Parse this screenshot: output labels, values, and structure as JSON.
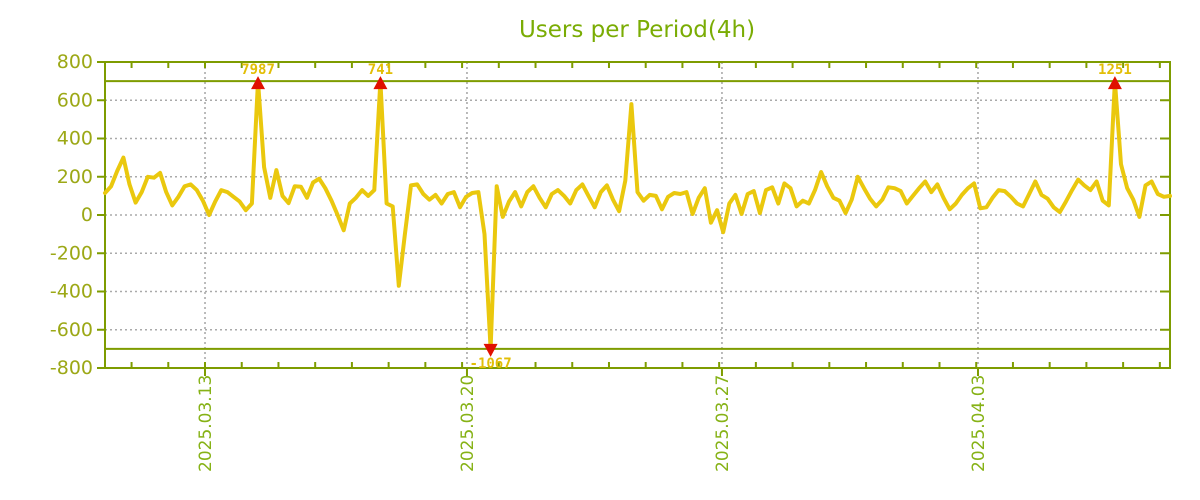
{
  "chart_data": {
    "type": "line",
    "title": "Users per Period(4h)",
    "xlabel": "",
    "ylabel": "",
    "period": "4h",
    "grid": true,
    "legend_position": "none",
    "y_axis": {
      "min": -800,
      "max": 800,
      "tick_step": 200,
      "tick_labels": [
        "800",
        "600",
        "400",
        "200",
        "0",
        "-200",
        "-400",
        "-600",
        "-800"
      ]
    },
    "x_axis": {
      "tick_labels": [
        "2025.03.13",
        "2025.03.20",
        "2025.03.27",
        "2025.04.03"
      ],
      "tick_indices": [
        16.34,
        59.14,
        100.8,
        142.63
      ],
      "minor_tick_step_points": 6,
      "minor_tick_first_index": 4.34
    },
    "thresholds": {
      "upper": 700,
      "lower": -700
    },
    "series": [
      {
        "name": "Users",
        "values": [
          115,
          150,
          230,
          300,
          160,
          65,
          120,
          200,
          195,
          220,
          120,
          50,
          95,
          150,
          160,
          130,
          75,
          0,
          70,
          130,
          120,
          95,
          70,
          25,
          60,
          7987,
          250,
          90,
          235,
          100,
          62,
          150,
          148,
          90,
          170,
          190,
          140,
          75,
          0,
          -80,
          60,
          90,
          130,
          100,
          130,
          741,
          60,
          45,
          -370,
          -100,
          155,
          160,
          110,
          80,
          105,
          60,
          110,
          120,
          40,
          95,
          115,
          120,
          -100,
          -1067,
          150,
          -10,
          70,
          120,
          45,
          120,
          150,
          90,
          40,
          110,
          130,
          100,
          60,
          130,
          160,
          100,
          40,
          120,
          155,
          80,
          20,
          180,
          580,
          120,
          75,
          105,
          100,
          30,
          95,
          115,
          110,
          120,
          5,
          90,
          140,
          -40,
          25,
          -90,
          60,
          105,
          5,
          110,
          125,
          10,
          130,
          145,
          60,
          165,
          140,
          45,
          75,
          60,
          130,
          225,
          150,
          90,
          75,
          10,
          80,
          200,
          140,
          85,
          45,
          80,
          145,
          140,
          125,
          60,
          100,
          140,
          175,
          120,
          160,
          90,
          30,
          60,
          105,
          140,
          165,
          35,
          40,
          90,
          130,
          125,
          95,
          60,
          45,
          110,
          175,
          105,
          85,
          40,
          15,
          70,
          130,
          185,
          155,
          130,
          175,
          75,
          50,
          1251,
          265,
          140,
          80,
          -10,
          155,
          175,
          110,
          95,
          100
        ]
      }
    ],
    "annotations": [
      {
        "label": "7987",
        "value": 7987,
        "index": 25,
        "direction": "up"
      },
      {
        "label": "741",
        "value": 741,
        "index": 45,
        "direction": "up"
      },
      {
        "label": "-1067",
        "value": -1067,
        "index": 63,
        "direction": "down"
      },
      {
        "label": "1251",
        "value": 1251,
        "index": 165,
        "direction": "up"
      }
    ],
    "colors": {
      "background": "#FFFFFF",
      "line": "#EAC80E",
      "axis_frame": "#7E9C00",
      "threshold_line": "#7E9C00",
      "title": "#7AAC04",
      "x_tick_label": "#86B216",
      "y_tick_label": "#9CA816",
      "annotation_text": "#E2BE06",
      "marker": "#E01000",
      "grid": "#AAAAAA"
    }
  }
}
